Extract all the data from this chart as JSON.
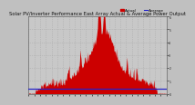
{
  "title": "Solar PV/Inverter Performance East Array Actual & Average Power Output",
  "bg_color": "#c0c0c0",
  "plot_bg": "#c8c8c8",
  "bar_color": "#cc0000",
  "avg_line_color": "#2222cc",
  "grid_color": "#aaaaaa",
  "grid_style": ":",
  "ylim": [
    0,
    6
  ],
  "xlim": [
    0,
    300
  ],
  "avg_value": 0.42,
  "num_points": 300,
  "legend_actual_color": "#cc0000",
  "legend_avg_color": "#2222cc",
  "title_fontsize": 3.8,
  "tick_fontsize": 2.2,
  "legend_fontsize": 3.0,
  "ytick_labels": [
    "6",
    "5",
    "4",
    "3",
    "2",
    "1",
    "0"
  ],
  "ytick_values": [
    6,
    5,
    4,
    3,
    2,
    1,
    0
  ]
}
